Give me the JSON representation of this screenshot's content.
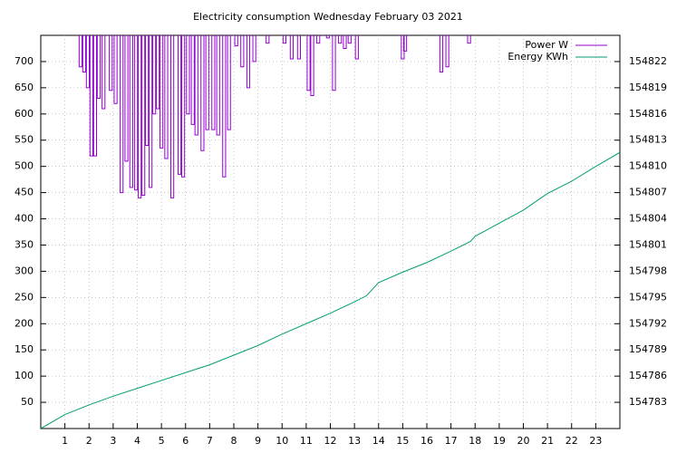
{
  "chart_data": {
    "type": "line",
    "title": "Electricity consumption Wednesday February 03 2021",
    "xlim": [
      0,
      24
    ],
    "xticks": [
      1,
      2,
      3,
      4,
      5,
      6,
      7,
      8,
      9,
      10,
      11,
      12,
      13,
      14,
      15,
      16,
      17,
      18,
      19,
      20,
      21,
      22,
      23
    ],
    "ylim": [
      0,
      750
    ],
    "yticks": [
      50,
      100,
      150,
      200,
      250,
      300,
      350,
      400,
      450,
      500,
      550,
      600,
      650,
      700
    ],
    "y2lim": [
      154780,
      154825
    ],
    "y2ticks": [
      154783,
      154786,
      154789,
      154792,
      154795,
      154798,
      154801,
      154804,
      154807,
      154810,
      154813,
      154816,
      154819,
      154822
    ],
    "grid": true,
    "legend": "top-right",
    "series": [
      {
        "name": "Power W",
        "color": "#9400d3",
        "axis": "y",
        "style": "impulse",
        "x": [
          1.65,
          1.8,
          1.95,
          2.1,
          2.25,
          2.4,
          2.6,
          2.9,
          3.1,
          3.35,
          3.55,
          3.75,
          3.95,
          4.1,
          4.25,
          4.4,
          4.55,
          4.7,
          4.85,
          5.0,
          5.2,
          5.45,
          5.75,
          5.9,
          6.1,
          6.3,
          6.45,
          6.7,
          6.9,
          7.15,
          7.35,
          7.6,
          7.8,
          8.1,
          8.35,
          8.6,
          8.85,
          9.4,
          10.1,
          10.4,
          10.7,
          11.1,
          11.25,
          11.5,
          11.9,
          12.15,
          12.4,
          12.6,
          12.8,
          13.1,
          15.0,
          15.1,
          16.6,
          16.85,
          17.75
        ],
        "values": [
          690,
          680,
          650,
          520,
          520,
          630,
          610,
          645,
          620,
          450,
          510,
          460,
          455,
          440,
          445,
          540,
          460,
          600,
          610,
          535,
          515,
          440,
          485,
          480,
          600,
          580,
          560,
          530,
          570,
          570,
          560,
          480,
          570,
          730,
          690,
          650,
          700,
          735,
          735,
          705,
          705,
          645,
          635,
          735,
          745,
          645,
          735,
          725,
          735,
          705,
          705,
          720,
          680,
          690,
          735
        ]
      },
      {
        "name": "Energy KWh",
        "color": "#009e73",
        "axis": "y2",
        "x": [
          0,
          1,
          2,
          3,
          4,
          5,
          6,
          7,
          8,
          9,
          10,
          11,
          12,
          13,
          13.5,
          14,
          15,
          16,
          17,
          17.8,
          18,
          19,
          20,
          21,
          22,
          23,
          24
        ],
        "values": [
          154780,
          154781.6,
          154782.7,
          154783.7,
          154784.6,
          154785.5,
          154786.4,
          154787.3,
          154788.4,
          154789.5,
          154790.8,
          154792,
          154793.2,
          154794.5,
          154795.2,
          154796.7,
          154797.9,
          154799,
          154800.3,
          154801.4,
          154802,
          154803.5,
          154805,
          154806.9,
          154808.3,
          154810,
          154811.6
        ]
      }
    ]
  }
}
